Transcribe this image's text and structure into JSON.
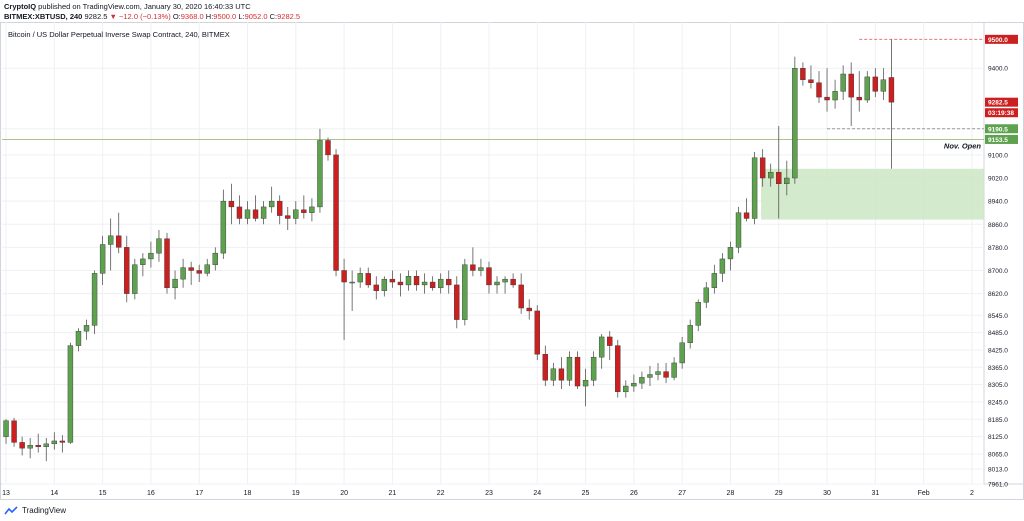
{
  "header": {
    "publisher_prefix": "CryptoIQ",
    "published_text": " published on TradingView.com, January 30, 2020 16:40:33 UTC",
    "symbol": "BITMEX:XBTUSD, 240",
    "last": "9282.5",
    "change_text": "▼ −12.0 (−0.13%)",
    "o_label": "O:",
    "o_value": "9368.0",
    "h_label": "H:",
    "h_value": "9500.0",
    "l_label": "L:",
    "l_value": "9052.0",
    "c_label": "C:",
    "c_value": "9282.5"
  },
  "chart_title": "Bitcoin / US Dollar Perpetual Inverse Swap Contract, 240, BITMEX",
  "footer": {
    "brand": "TradingView"
  },
  "colors": {
    "up": "#5ea14f",
    "down": "#cc1f1f",
    "grid": "#eef0f3",
    "zone_fill": "#cde6c4",
    "nov_open_line": "#a7c58d",
    "high_line": "#e07a7a",
    "axis_text": "#131722"
  },
  "chart_data": {
    "type": "candlestick",
    "title": "Bitcoin / US Dollar Perpetual Inverse Swap Contract, 240, BITMEX",
    "timeframe": "240",
    "ylim": [
      7961,
      9560
    ],
    "y_ticks": [
      7961.0,
      8013.0,
      8065.0,
      8125.0,
      8185.0,
      8245.0,
      8305.0,
      8365.0,
      8425.0,
      8485.0,
      8545.0,
      8620.0,
      8700.0,
      8780.0,
      8860.0,
      8940.0,
      9020.0,
      9100.0,
      9190.5,
      9400.0
    ],
    "x_ticks": [
      {
        "label": "13",
        "bar": 0.5
      },
      {
        "label": "14",
        "bar": 6.5
      },
      {
        "label": "15",
        "bar": 12.5
      },
      {
        "label": "16",
        "bar": 18.5
      },
      {
        "label": "17",
        "bar": 24.5
      },
      {
        "label": "18",
        "bar": 30.5
      },
      {
        "label": "19",
        "bar": 36.5
      },
      {
        "label": "20",
        "bar": 42.5
      },
      {
        "label": "21",
        "bar": 48.5
      },
      {
        "label": "22",
        "bar": 54.5
      },
      {
        "label": "23",
        "bar": 60.5
      },
      {
        "label": "24",
        "bar": 66.5
      },
      {
        "label": "25",
        "bar": 72.5
      },
      {
        "label": "26",
        "bar": 78.5
      },
      {
        "label": "27",
        "bar": 84.5
      },
      {
        "label": "28",
        "bar": 90.5
      },
      {
        "label": "29",
        "bar": 96.5
      },
      {
        "label": "30",
        "bar": 102.5
      },
      {
        "label": "31",
        "bar": 108.5
      },
      {
        "label": "Feb",
        "bar": 114.5
      },
      {
        "label": "2",
        "bar": 120.5
      }
    ],
    "total_bars": 122,
    "price_labels": [
      {
        "value": 9500.0,
        "text": "9500.0",
        "color": "#cc1f1f"
      },
      {
        "value": 9282.5,
        "text": "9282.5",
        "color": "#cc1f1f"
      },
      {
        "value": 9246.0,
        "text": "03:19:38",
        "color": "#cc1f1f"
      },
      {
        "value": 9190.5,
        "text": "9190.5",
        "color": "#5ea14f"
      },
      {
        "value": 9153.5,
        "text": "9153.5",
        "color": "#5ea14f"
      }
    ],
    "annotations": {
      "nov_open": {
        "label": "Nov. Open",
        "value": 9153.5
      },
      "high_level": {
        "value": 9500.0,
        "from_bar": 106.5
      },
      "low_dashed": {
        "value": 9190.5,
        "from_bar": 102.5
      },
      "demand_zone": {
        "top": 9052.0,
        "bottom": 8876.0,
        "from_bar": 94.3
      }
    },
    "candles": [
      {
        "o": 8125,
        "h": 8185,
        "l": 8100,
        "c": 8180
      },
      {
        "o": 8180,
        "h": 8190,
        "l": 8090,
        "c": 8105
      },
      {
        "o": 8105,
        "h": 8125,
        "l": 8060,
        "c": 8085
      },
      {
        "o": 8085,
        "h": 8120,
        "l": 8050,
        "c": 8095
      },
      {
        "o": 8095,
        "h": 8135,
        "l": 8070,
        "c": 8090
      },
      {
        "o": 8090,
        "h": 8120,
        "l": 8040,
        "c": 8100
      },
      {
        "o": 8100,
        "h": 8140,
        "l": 8080,
        "c": 8110
      },
      {
        "o": 8110,
        "h": 8130,
        "l": 8070,
        "c": 8105
      },
      {
        "o": 8105,
        "h": 8450,
        "l": 8100,
        "c": 8440
      },
      {
        "o": 8440,
        "h": 8500,
        "l": 8420,
        "c": 8490
      },
      {
        "o": 8490,
        "h": 8530,
        "l": 8460,
        "c": 8510
      },
      {
        "o": 8510,
        "h": 8700,
        "l": 8480,
        "c": 8690
      },
      {
        "o": 8690,
        "h": 8820,
        "l": 8650,
        "c": 8790
      },
      {
        "o": 8790,
        "h": 8880,
        "l": 8700,
        "c": 8820
      },
      {
        "o": 8820,
        "h": 8900,
        "l": 8760,
        "c": 8780
      },
      {
        "o": 8780,
        "h": 8820,
        "l": 8590,
        "c": 8620
      },
      {
        "o": 8620,
        "h": 8740,
        "l": 8600,
        "c": 8720
      },
      {
        "o": 8720,
        "h": 8760,
        "l": 8680,
        "c": 8740
      },
      {
        "o": 8740,
        "h": 8800,
        "l": 8710,
        "c": 8760
      },
      {
        "o": 8760,
        "h": 8840,
        "l": 8730,
        "c": 8810
      },
      {
        "o": 8810,
        "h": 8830,
        "l": 8620,
        "c": 8640
      },
      {
        "o": 8640,
        "h": 8700,
        "l": 8600,
        "c": 8670
      },
      {
        "o": 8670,
        "h": 8740,
        "l": 8640,
        "c": 8710
      },
      {
        "o": 8710,
        "h": 8730,
        "l": 8650,
        "c": 8700
      },
      {
        "o": 8700,
        "h": 8720,
        "l": 8660,
        "c": 8690
      },
      {
        "o": 8690,
        "h": 8740,
        "l": 8680,
        "c": 8720
      },
      {
        "o": 8720,
        "h": 8780,
        "l": 8700,
        "c": 8760
      },
      {
        "o": 8760,
        "h": 8980,
        "l": 8740,
        "c": 8940
      },
      {
        "o": 8940,
        "h": 9000,
        "l": 8860,
        "c": 8920
      },
      {
        "o": 8920,
        "h": 8960,
        "l": 8860,
        "c": 8880
      },
      {
        "o": 8880,
        "h": 8940,
        "l": 8860,
        "c": 8910
      },
      {
        "o": 8910,
        "h": 8960,
        "l": 8870,
        "c": 8880
      },
      {
        "o": 8880,
        "h": 8940,
        "l": 8860,
        "c": 8920
      },
      {
        "o": 8920,
        "h": 8990,
        "l": 8900,
        "c": 8940
      },
      {
        "o": 8940,
        "h": 8960,
        "l": 8860,
        "c": 8890
      },
      {
        "o": 8890,
        "h": 8920,
        "l": 8840,
        "c": 8880
      },
      {
        "o": 8880,
        "h": 8940,
        "l": 8860,
        "c": 8910
      },
      {
        "o": 8910,
        "h": 8960,
        "l": 8880,
        "c": 8900
      },
      {
        "o": 8900,
        "h": 8950,
        "l": 8870,
        "c": 8920
      },
      {
        "o": 8920,
        "h": 9190,
        "l": 8900,
        "c": 9150
      },
      {
        "o": 9150,
        "h": 9160,
        "l": 9080,
        "c": 9100
      },
      {
        "o": 9100,
        "h": 9120,
        "l": 8680,
        "c": 8700
      },
      {
        "o": 8700,
        "h": 8740,
        "l": 8460,
        "c": 8660
      },
      {
        "o": 8660,
        "h": 8700,
        "l": 8560,
        "c": 8660
      },
      {
        "o": 8660,
        "h": 8710,
        "l": 8640,
        "c": 8690
      },
      {
        "o": 8690,
        "h": 8710,
        "l": 8640,
        "c": 8650
      },
      {
        "o": 8650,
        "h": 8680,
        "l": 8600,
        "c": 8630
      },
      {
        "o": 8630,
        "h": 8680,
        "l": 8610,
        "c": 8670
      },
      {
        "o": 8670,
        "h": 8700,
        "l": 8640,
        "c": 8660
      },
      {
        "o": 8660,
        "h": 8690,
        "l": 8610,
        "c": 8650
      },
      {
        "o": 8650,
        "h": 8700,
        "l": 8630,
        "c": 8680
      },
      {
        "o": 8680,
        "h": 8700,
        "l": 8630,
        "c": 8650
      },
      {
        "o": 8650,
        "h": 8690,
        "l": 8620,
        "c": 8660
      },
      {
        "o": 8660,
        "h": 8680,
        "l": 8630,
        "c": 8640
      },
      {
        "o": 8640,
        "h": 8690,
        "l": 8620,
        "c": 8670
      },
      {
        "o": 8670,
        "h": 8700,
        "l": 8620,
        "c": 8650
      },
      {
        "o": 8650,
        "h": 8680,
        "l": 8500,
        "c": 8530
      },
      {
        "o": 8530,
        "h": 8740,
        "l": 8510,
        "c": 8720
      },
      {
        "o": 8720,
        "h": 8780,
        "l": 8680,
        "c": 8700
      },
      {
        "o": 8700,
        "h": 8740,
        "l": 8680,
        "c": 8710
      },
      {
        "o": 8710,
        "h": 8730,
        "l": 8620,
        "c": 8650
      },
      {
        "o": 8650,
        "h": 8680,
        "l": 8620,
        "c": 8660
      },
      {
        "o": 8660,
        "h": 8680,
        "l": 8620,
        "c": 8670
      },
      {
        "o": 8670,
        "h": 8690,
        "l": 8640,
        "c": 8650
      },
      {
        "o": 8650,
        "h": 8690,
        "l": 8550,
        "c": 8570
      },
      {
        "o": 8570,
        "h": 8600,
        "l": 8530,
        "c": 8560
      },
      {
        "o": 8560,
        "h": 8580,
        "l": 8390,
        "c": 8410
      },
      {
        "o": 8410,
        "h": 8440,
        "l": 8300,
        "c": 8320
      },
      {
        "o": 8320,
        "h": 8380,
        "l": 8300,
        "c": 8360
      },
      {
        "o": 8360,
        "h": 8400,
        "l": 8290,
        "c": 8320
      },
      {
        "o": 8320,
        "h": 8420,
        "l": 8300,
        "c": 8400
      },
      {
        "o": 8400,
        "h": 8420,
        "l": 8290,
        "c": 8300
      },
      {
        "o": 8300,
        "h": 8360,
        "l": 8230,
        "c": 8320
      },
      {
        "o": 8320,
        "h": 8420,
        "l": 8300,
        "c": 8400
      },
      {
        "o": 8400,
        "h": 8480,
        "l": 8360,
        "c": 8470
      },
      {
        "o": 8470,
        "h": 8490,
        "l": 8390,
        "c": 8440
      },
      {
        "o": 8440,
        "h": 8460,
        "l": 8260,
        "c": 8280
      },
      {
        "o": 8280,
        "h": 8320,
        "l": 8260,
        "c": 8300
      },
      {
        "o": 8300,
        "h": 8340,
        "l": 8280,
        "c": 8310
      },
      {
        "o": 8310,
        "h": 8350,
        "l": 8290,
        "c": 8330
      },
      {
        "o": 8330,
        "h": 8370,
        "l": 8300,
        "c": 8340
      },
      {
        "o": 8340,
        "h": 8380,
        "l": 8320,
        "c": 8350
      },
      {
        "o": 8350,
        "h": 8380,
        "l": 8310,
        "c": 8330
      },
      {
        "o": 8330,
        "h": 8400,
        "l": 8320,
        "c": 8380
      },
      {
        "o": 8380,
        "h": 8470,
        "l": 8360,
        "c": 8450
      },
      {
        "o": 8450,
        "h": 8530,
        "l": 8430,
        "c": 8510
      },
      {
        "o": 8510,
        "h": 8600,
        "l": 8490,
        "c": 8590
      },
      {
        "o": 8590,
        "h": 8660,
        "l": 8570,
        "c": 8640
      },
      {
        "o": 8640,
        "h": 8720,
        "l": 8620,
        "c": 8690
      },
      {
        "o": 8690,
        "h": 8760,
        "l": 8660,
        "c": 8740
      },
      {
        "o": 8740,
        "h": 8800,
        "l": 8700,
        "c": 8780
      },
      {
        "o": 8780,
        "h": 8920,
        "l": 8760,
        "c": 8900
      },
      {
        "o": 8900,
        "h": 8950,
        "l": 8870,
        "c": 8880
      },
      {
        "o": 8880,
        "h": 9110,
        "l": 8860,
        "c": 9090
      },
      {
        "o": 9090,
        "h": 9120,
        "l": 8990,
        "c": 9020
      },
      {
        "o": 9020,
        "h": 9070,
        "l": 8990,
        "c": 9040
      },
      {
        "o": 9040,
        "h": 9200,
        "l": 8880,
        "c": 9000
      },
      {
        "o": 9000,
        "h": 9080,
        "l": 8960,
        "c": 9020
      },
      {
        "o": 9020,
        "h": 9440,
        "l": 9000,
        "c": 9400
      },
      {
        "o": 9400,
        "h": 9420,
        "l": 9340,
        "c": 9360
      },
      {
        "o": 9360,
        "h": 9410,
        "l": 9330,
        "c": 9350
      },
      {
        "o": 9350,
        "h": 9390,
        "l": 9280,
        "c": 9300
      },
      {
        "o": 9300,
        "h": 9400,
        "l": 9250,
        "c": 9290
      },
      {
        "o": 9290,
        "h": 9360,
        "l": 9260,
        "c": 9320
      },
      {
        "o": 9320,
        "h": 9410,
        "l": 9290,
        "c": 9380
      },
      {
        "o": 9380,
        "h": 9420,
        "l": 9200,
        "c": 9300
      },
      {
        "o": 9300,
        "h": 9390,
        "l": 9250,
        "c": 9290
      },
      {
        "o": 9290,
        "h": 9390,
        "l": 9280,
        "c": 9370
      },
      {
        "o": 9370,
        "h": 9400,
        "l": 9300,
        "c": 9320
      },
      {
        "o": 9320,
        "h": 9400,
        "l": 9290,
        "c": 9360
      },
      {
        "o": 9368,
        "h": 9500,
        "l": 9052,
        "c": 9282.5
      }
    ]
  }
}
